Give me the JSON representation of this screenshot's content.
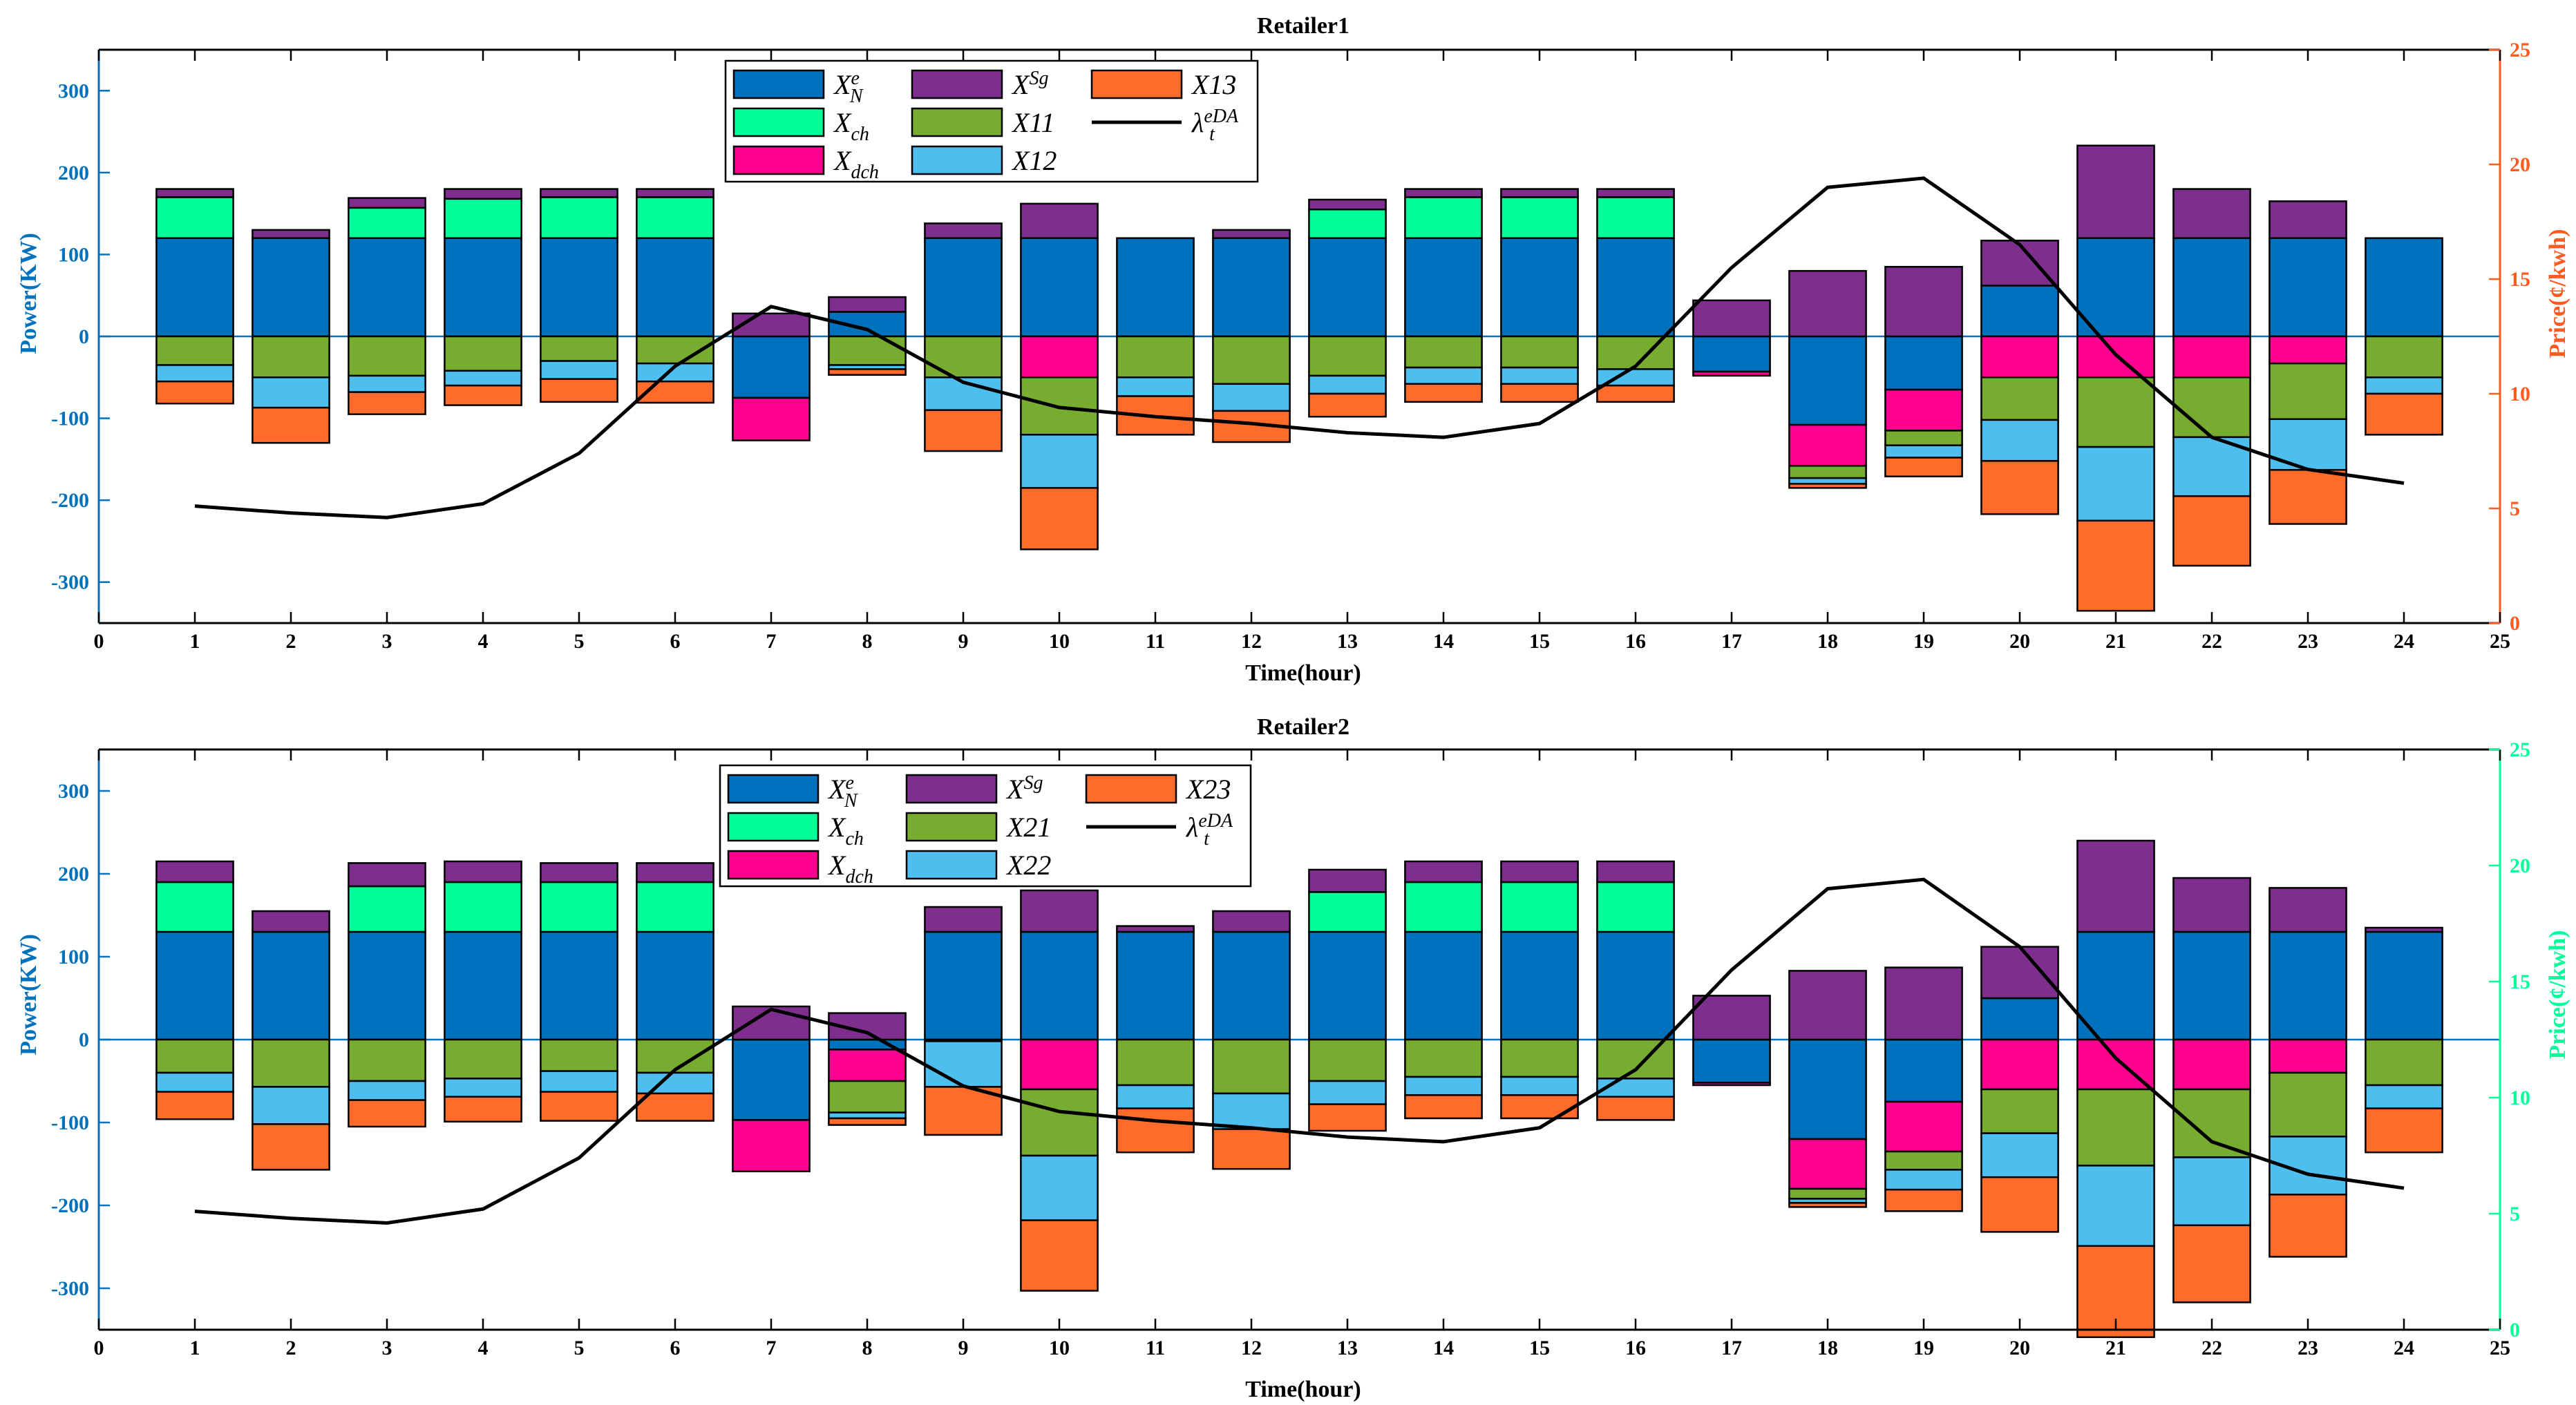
{
  "colors": {
    "XNe": "#0072BD",
    "Xch": "#00FF99",
    "Xdch": "#FF0090",
    "XSg": "#7E2F8E",
    "C1": "#77AC30",
    "C2": "#4DBEEE",
    "C3": "#FF6B2B",
    "left_axis": "#0072BD",
    "right_axis_1": "#FF5A1F",
    "right_axis_2": "#00FF99",
    "price_line": "#000000"
  },
  "chart_data": [
    {
      "type": "bar",
      "stacked": true,
      "title": "Retailer1",
      "xlabel": "Time(hour)",
      "ylabel_left": "Power(KW)",
      "ylabel_right": "Price(¢/kwh)",
      "xlim": [
        0,
        25
      ],
      "ylim_left": [
        -350,
        350
      ],
      "ylim_right": [
        0,
        25
      ],
      "x_ticks": [
        "0",
        "1",
        "2",
        "3",
        "4",
        "5",
        "6",
        "7",
        "8",
        "9",
        "10",
        "11",
        "12",
        "13",
        "14",
        "15",
        "16",
        "17",
        "18",
        "19",
        "20",
        "21",
        "22",
        "23",
        "24",
        "25"
      ],
      "y_ticks_left": [
        "-300",
        "-200",
        "-100",
        "0",
        "100",
        "200",
        "300"
      ],
      "y_ticks_right": [
        "0",
        "5",
        "10",
        "15",
        "20",
        "25"
      ],
      "categories": [
        1,
        2,
        3,
        4,
        5,
        6,
        7,
        8,
        9,
        10,
        11,
        12,
        13,
        14,
        15,
        16,
        17,
        18,
        19,
        20,
        21,
        22,
        23,
        24
      ],
      "series": [
        {
          "name": "XNe",
          "legend": "X_N^e",
          "color_key": "XNe",
          "values": [
            120,
            120,
            120,
            120,
            120,
            120,
            -75,
            30,
            120,
            120,
            120,
            120,
            120,
            120,
            120,
            120,
            -43,
            -108,
            -65,
            62,
            120,
            120,
            120,
            120
          ]
        },
        {
          "name": "Xch",
          "legend": "X_ch",
          "color_key": "Xch",
          "values": [
            50,
            0,
            37,
            48,
            50,
            50,
            0,
            0,
            0,
            0,
            0,
            0,
            35,
            50,
            50,
            50,
            0,
            0,
            0,
            0,
            0,
            0,
            0,
            0
          ]
        },
        {
          "name": "Xdch",
          "legend": "X_dch",
          "color_key": "Xdch",
          "values": [
            0,
            0,
            0,
            0,
            0,
            0,
            -52,
            0,
            0,
            -50,
            0,
            0,
            0,
            0,
            0,
            0,
            -5,
            -50,
            -50,
            -50,
            -50,
            -50,
            -33,
            0
          ]
        },
        {
          "name": "XSg",
          "legend": "X^Sg",
          "color_key": "XSg",
          "values": [
            10,
            10,
            12,
            12,
            10,
            10,
            28,
            18,
            18,
            42,
            0,
            10,
            12,
            10,
            10,
            10,
            44,
            80,
            85,
            55,
            113,
            60,
            45,
            0
          ]
        },
        {
          "name": "X11",
          "legend": "X11",
          "color_key": "C1",
          "values": [
            -35,
            -50,
            -48,
            -42,
            -30,
            -33,
            0,
            -35,
            -50,
            -70,
            -50,
            -58,
            -48,
            -38,
            -38,
            -40,
            0,
            -15,
            -18,
            -52,
            -85,
            -73,
            -68,
            -50
          ]
        },
        {
          "name": "X12",
          "legend": "X12",
          "color_key": "C2",
          "values": [
            -20,
            -37,
            -20,
            -18,
            -22,
            -22,
            0,
            -5,
            -40,
            -65,
            -23,
            -33,
            -22,
            -20,
            -20,
            -20,
            0,
            -7,
            -15,
            -50,
            -90,
            -72,
            -62,
            -20
          ]
        },
        {
          "name": "X13",
          "legend": "X13",
          "color_key": "C3",
          "values": [
            -27,
            -43,
            -27,
            -24,
            -28,
            -26,
            0,
            -7,
            -50,
            -75,
            -47,
            -38,
            -28,
            -22,
            -22,
            -20,
            0,
            -5,
            -23,
            -65,
            -110,
            -85,
            -66,
            -50
          ]
        }
      ],
      "price_line": {
        "name": "lambda_t^eDA",
        "legend": "λ_t^eDA",
        "values": [
          5.1,
          4.8,
          4.6,
          5.2,
          7.4,
          11.2,
          13.8,
          12.8,
          10.5,
          9.4,
          9.0,
          8.7,
          8.3,
          8.1,
          8.7,
          11.2,
          15.5,
          19.0,
          19.4,
          16.5,
          11.7,
          8.1,
          6.7,
          6.1
        ]
      }
    },
    {
      "type": "bar",
      "stacked": true,
      "title": "Retailer2",
      "xlabel": "Time(hour)",
      "ylabel_left": "Power(KW)",
      "ylabel_right": "Price(¢/kwh)",
      "xlim": [
        0,
        25
      ],
      "ylim_left": [
        -350,
        350
      ],
      "ylim_right": [
        0,
        25
      ],
      "x_ticks": [
        "0",
        "1",
        "2",
        "3",
        "4",
        "5",
        "6",
        "7",
        "8",
        "9",
        "10",
        "11",
        "12",
        "13",
        "14",
        "15",
        "16",
        "17",
        "18",
        "19",
        "20",
        "21",
        "22",
        "23",
        "24",
        "25"
      ],
      "y_ticks_left": [
        "-300",
        "-200",
        "-100",
        "0",
        "100",
        "200",
        "300"
      ],
      "y_ticks_right": [
        "0",
        "5",
        "10",
        "15",
        "20",
        "25"
      ],
      "categories": [
        1,
        2,
        3,
        4,
        5,
        6,
        7,
        8,
        9,
        10,
        11,
        12,
        13,
        14,
        15,
        16,
        17,
        18,
        19,
        20,
        21,
        22,
        23,
        24
      ],
      "series": [
        {
          "name": "XNe",
          "legend": "X_N^e",
          "color_key": "XNe",
          "values": [
            130,
            130,
            130,
            130,
            130,
            130,
            -97,
            -12,
            130,
            130,
            130,
            130,
            130,
            130,
            130,
            130,
            -52,
            -120,
            -75,
            50,
            130,
            130,
            130,
            130
          ]
        },
        {
          "name": "Xch",
          "legend": "X_ch",
          "color_key": "Xch",
          "values": [
            60,
            0,
            55,
            60,
            60,
            60,
            0,
            0,
            0,
            0,
            0,
            0,
            48,
            60,
            60,
            60,
            0,
            0,
            0,
            0,
            0,
            0,
            0,
            0
          ]
        },
        {
          "name": "Xdch",
          "legend": "X_dch",
          "color_key": "Xdch",
          "values": [
            0,
            0,
            0,
            0,
            0,
            0,
            -62,
            -38,
            0,
            -60,
            0,
            0,
            0,
            0,
            0,
            0,
            -3,
            -60,
            -60,
            -60,
            -60,
            -60,
            -40,
            0
          ]
        },
        {
          "name": "XSg",
          "legend": "X^Sg",
          "color_key": "XSg",
          "values": [
            25,
            25,
            28,
            25,
            23,
            23,
            40,
            32,
            30,
            50,
            7,
            25,
            27,
            25,
            25,
            25,
            53,
            83,
            87,
            62,
            110,
            65,
            53,
            5
          ]
        },
        {
          "name": "X21",
          "legend": "X21",
          "color_key": "C1",
          "values": [
            -40,
            -57,
            -50,
            -47,
            -38,
            -40,
            0,
            -38,
            -2,
            -80,
            -55,
            -65,
            -50,
            -45,
            -45,
            -47,
            0,
            -12,
            -22,
            -53,
            -92,
            -82,
            -77,
            -55
          ]
        },
        {
          "name": "X22",
          "legend": "X22",
          "color_key": "C2",
          "values": [
            -23,
            -45,
            -23,
            -22,
            -25,
            -25,
            0,
            -7,
            -55,
            -78,
            -28,
            -43,
            -28,
            -22,
            -22,
            -22,
            0,
            -5,
            -24,
            -53,
            -97,
            -82,
            -70,
            -28
          ]
        },
        {
          "name": "X23",
          "legend": "X23",
          "color_key": "C3",
          "values": [
            -33,
            -55,
            -32,
            -30,
            -35,
            -33,
            0,
            -8,
            -58,
            -85,
            -53,
            -48,
            -32,
            -28,
            -28,
            -28,
            0,
            -5,
            -26,
            -66,
            -110,
            -93,
            -75,
            -53
          ]
        }
      ],
      "price_line": {
        "name": "lambda_t^eDA",
        "legend": "λ_t^eDA",
        "values": [
          5.1,
          4.8,
          4.6,
          5.2,
          7.4,
          11.2,
          13.8,
          12.8,
          10.5,
          9.4,
          9.0,
          8.7,
          8.3,
          8.1,
          8.7,
          11.2,
          15.5,
          19.0,
          19.4,
          16.5,
          11.7,
          8.1,
          6.7,
          6.1
        ]
      }
    }
  ]
}
